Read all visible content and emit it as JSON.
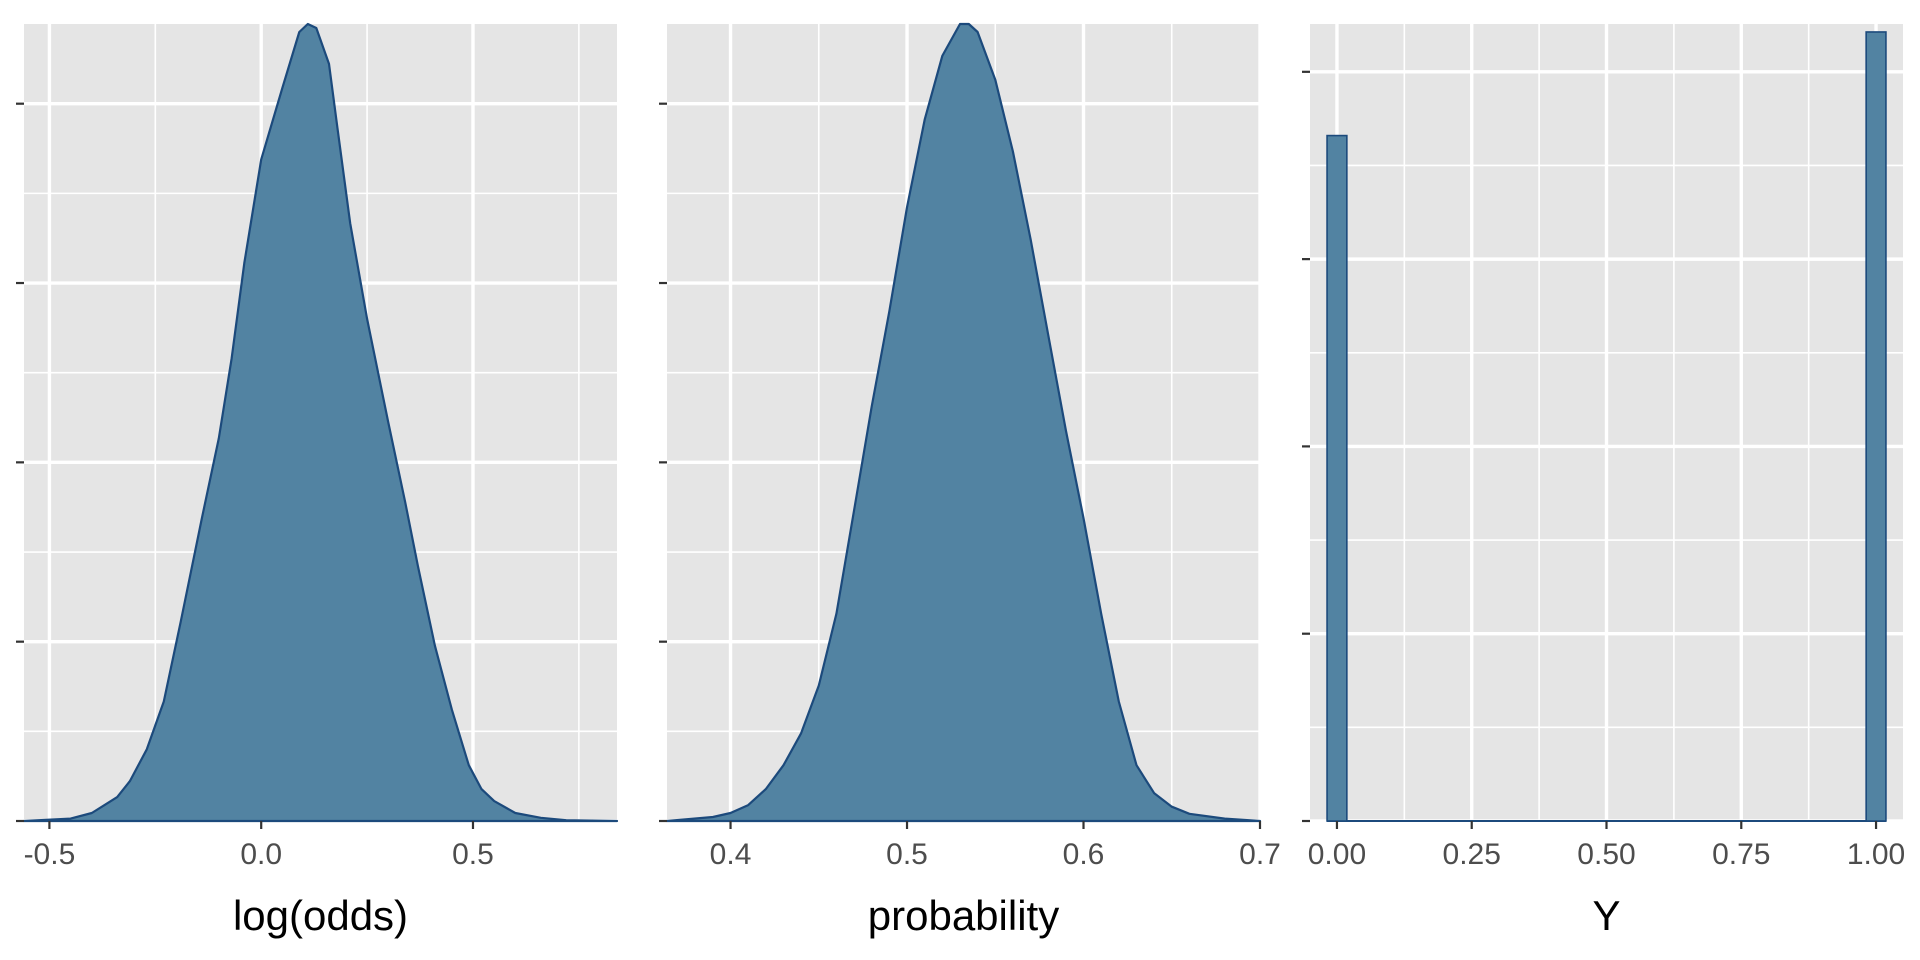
{
  "colors": {
    "panel_background": "#e5e5e5",
    "grid": "#ffffff",
    "fill": "#5283a2",
    "outline": "#1c4a7c",
    "tick_text": "#4d4d4d",
    "title_text": "#000000"
  },
  "chart_data": [
    {
      "type": "area",
      "xlabel": "log(odds)",
      "xlim": [
        -0.56,
        0.84
      ],
      "ylim": [
        0,
        1.0
      ],
      "x_ticks": [
        -0.5,
        0.0,
        0.5
      ],
      "x_tick_labels": [
        "-0.5",
        "0.0",
        "0.5"
      ],
      "y_ticks": [
        0.0,
        0.225,
        0.45,
        0.675,
        0.9
      ],
      "y_tick_labels": [],
      "grid": true,
      "legend": "none",
      "series": [
        {
          "x": [
            -0.56,
            -0.45,
            -0.4,
            -0.37,
            -0.34,
            -0.31,
            -0.27,
            -0.23,
            -0.19,
            -0.14,
            -0.1,
            -0.07,
            -0.04,
            0.0,
            0.05,
            0.09,
            0.11,
            0.13,
            0.16,
            0.18,
            0.21,
            0.25,
            0.3,
            0.34,
            0.37,
            0.41,
            0.45,
            0.49,
            0.52,
            0.55,
            0.6,
            0.66,
            0.72,
            0.84
          ],
          "y": [
            0.0,
            0.003,
            0.01,
            0.02,
            0.03,
            0.05,
            0.09,
            0.15,
            0.25,
            0.38,
            0.48,
            0.58,
            0.7,
            0.83,
            0.92,
            0.99,
            1.0,
            0.995,
            0.95,
            0.87,
            0.75,
            0.63,
            0.5,
            0.4,
            0.32,
            0.22,
            0.14,
            0.07,
            0.04,
            0.025,
            0.01,
            0.004,
            0.001,
            0.0
          ]
        }
      ]
    },
    {
      "type": "area",
      "xlabel": "probability",
      "xlim": [
        0.364,
        0.7
      ],
      "ylim": [
        0,
        1.0
      ],
      "x_ticks": [
        0.4,
        0.5,
        0.6,
        0.7
      ],
      "x_tick_labels": [
        "0.4",
        "0.5",
        "0.6",
        "0.7"
      ],
      "y_ticks": [
        0.0,
        0.225,
        0.45,
        0.675,
        0.9
      ],
      "y_tick_labels": [],
      "grid": true,
      "legend": "none",
      "series": [
        {
          "x": [
            0.364,
            0.39,
            0.4,
            0.41,
            0.42,
            0.43,
            0.44,
            0.45,
            0.46,
            0.47,
            0.48,
            0.49,
            0.5,
            0.51,
            0.52,
            0.53,
            0.535,
            0.54,
            0.55,
            0.56,
            0.57,
            0.58,
            0.59,
            0.6,
            0.61,
            0.62,
            0.63,
            0.64,
            0.65,
            0.66,
            0.68,
            0.7
          ],
          "y": [
            0.0,
            0.005,
            0.01,
            0.02,
            0.04,
            0.07,
            0.11,
            0.17,
            0.26,
            0.39,
            0.52,
            0.64,
            0.77,
            0.88,
            0.96,
            1.0,
            1.0,
            0.99,
            0.93,
            0.84,
            0.73,
            0.61,
            0.49,
            0.38,
            0.26,
            0.15,
            0.07,
            0.035,
            0.018,
            0.009,
            0.003,
            0.0
          ]
        }
      ]
    },
    {
      "type": "bar",
      "xlabel": "Y",
      "xlim": [
        -0.05,
        1.05
      ],
      "ylim": [
        0,
        1.0
      ],
      "x_ticks": [
        0.0,
        0.25,
        0.5,
        0.75,
        1.0
      ],
      "x_tick_labels": [
        "0.00",
        "0.25",
        "0.50",
        "0.75",
        "1.00"
      ],
      "y_ticks": [
        0.0,
        0.235,
        0.47,
        0.705,
        0.94
      ],
      "y_tick_labels": [],
      "grid": true,
      "legend": "none",
      "bins": [
        {
          "x": 0.0,
          "width": 0.0367,
          "y": 0.86
        },
        {
          "x": 1.0,
          "width": 0.0367,
          "y": 0.99
        }
      ]
    }
  ]
}
